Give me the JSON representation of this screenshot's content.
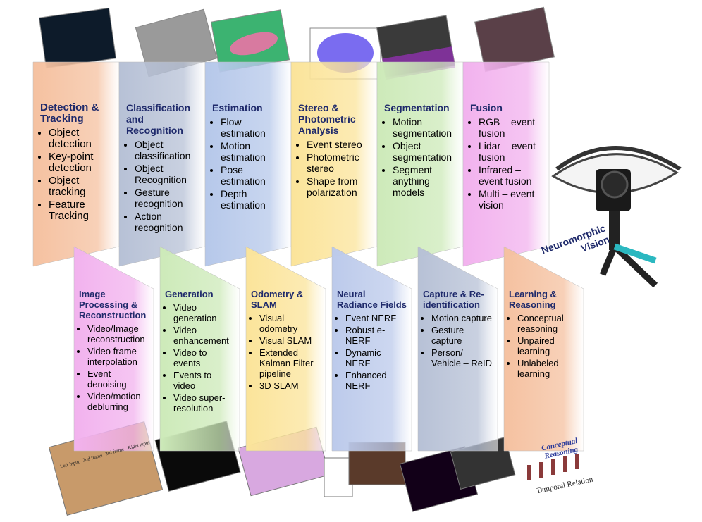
{
  "top_panels": [
    {
      "title": "Detection & Tracking",
      "items": [
        "Object detection",
        "Key-point detection",
        "Object tracking",
        "Feature Tracking"
      ]
    },
    {
      "title": "Classification and Recognition",
      "items": [
        "Object classification",
        "Object Recognition",
        "Gesture recognition",
        "Action recognition"
      ]
    },
    {
      "title": "Estimation",
      "items": [
        "Flow estimation",
        "Motion estimation",
        "Pose estimation",
        "Depth estimation"
      ]
    },
    {
      "title": "Stereo & Photometric Analysis",
      "items": [
        "Event stereo",
        "Photometric stereo",
        "Shape from polarization"
      ]
    },
    {
      "title": "Segmentation",
      "items": [
        "Motion segmentation",
        "Object segmentation",
        "Segment anything models"
      ]
    },
    {
      "title": "Fusion",
      "items": [
        "RGB – event fusion",
        "Lidar – event fusion",
        "Infrared – event fusion",
        "Multi – event vision"
      ]
    }
  ],
  "bottom_panels": [
    {
      "title": "Image Processing & Reconstruction",
      "items": [
        "Video/Image reconstruction",
        "Video frame interpolation",
        "Event denoising",
        "Video/motion deblurring"
      ]
    },
    {
      "title": "Generation",
      "items": [
        "Video generation",
        "Video enhancement",
        "Video to events",
        "Events to video",
        "Video super-resolution"
      ]
    },
    {
      "title": "Odometry & SLAM",
      "items": [
        "Visual odometry",
        "Visual SLAM",
        "Extended Kalman Filter pipeline",
        "3D SLAM"
      ]
    },
    {
      "title": "Neural Radiance Fields",
      "items": [
        "Event NERF",
        "Robust e-NERF",
        "Dynamic NERF",
        "Enhanced NERF"
      ]
    },
    {
      "title": "Capture & Re-identification",
      "items": [
        "Motion capture",
        "Gesture capture",
        "Person/ Vehicle – ReID"
      ]
    },
    {
      "title": "Learning & Reasoning",
      "items": [
        "Conceptual reasoning",
        "Unpaired learning",
        "Unlabeled learning"
      ]
    }
  ],
  "center_label": "Neuromorphic Vision",
  "image_texts": {
    "frame_labels": [
      "Left input",
      "2nd frame",
      "3rd frame",
      "Right input"
    ],
    "reasoning_title": "Conceptual Reasoning",
    "reasoning_axis": "Temporal Relation"
  }
}
